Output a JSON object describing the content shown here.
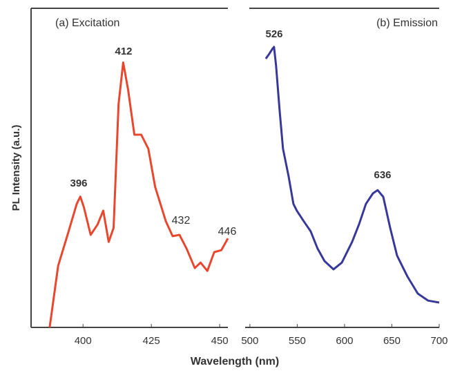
{
  "xlabel": "Wavelength (nm)",
  "ylabel": "PL Intensity (a.u.)",
  "chart_data": [
    {
      "type": "line",
      "title": "(a) Excitation",
      "x": [
        387.8,
        390.9,
        394.7,
        397.7,
        399,
        400.3,
        402.8,
        405.3,
        407.4,
        409.4,
        411.2,
        413,
        414.7,
        416.5,
        418.8,
        421.3,
        423.9,
        426.4,
        430.3,
        432.8,
        435.3,
        437.9,
        440.9,
        443,
        445.5,
        448,
        450.6,
        453
      ],
      "series": [
        {
          "name": "Excitation",
          "color": "#e8472e",
          "values": [
            0,
            19.3,
            30,
            38.7,
            41,
            37.7,
            29,
            32.2,
            36.6,
            26.8,
            31.2,
            70,
            83,
            74.5,
            60.4,
            60.4,
            56,
            44,
            33.3,
            28.6,
            29,
            24.7,
            18.6,
            20.3,
            17.7,
            23.6,
            24.2,
            27.9
          ]
        }
      ],
      "annotations": [
        "396",
        "412",
        "432",
        "446"
      ],
      "xlim": [
        381,
        453
      ],
      "xticks": [
        400,
        425,
        450
      ],
      "ylim": [
        0,
        100
      ],
      "yticks": []
    },
    {
      "type": "line",
      "title": "(b) Emission",
      "x": [
        516.8,
        520.4,
        524.1,
        525.5,
        527.7,
        531.4,
        535,
        540.9,
        546,
        549.6,
        556.9,
        564.2,
        571.5,
        578.8,
        588.3,
        597.1,
        608,
        615.3,
        622.6,
        630,
        635,
        640.9,
        648.2,
        655.5,
        666.4,
        677.4,
        688.3,
        700
      ],
      "series": [
        {
          "name": "Emission",
          "color": "#38389a",
          "values": [
            84.2,
            85.7,
            87.4,
            87.9,
            82,
            68,
            56,
            47.4,
            38.7,
            36.6,
            33.3,
            30.1,
            24.7,
            20.8,
            18.2,
            20.3,
            26.8,
            32.3,
            38.7,
            42,
            43,
            40.9,
            31.2,
            22.5,
            16,
            10.6,
            8.4,
            7.8
          ]
        }
      ],
      "annotations": [
        "526",
        "636"
      ],
      "xlim": [
        495,
        700
      ],
      "xticks": [
        500,
        550,
        600,
        650,
        700
      ],
      "ylim": [
        0,
        100
      ],
      "yticks": []
    }
  ]
}
